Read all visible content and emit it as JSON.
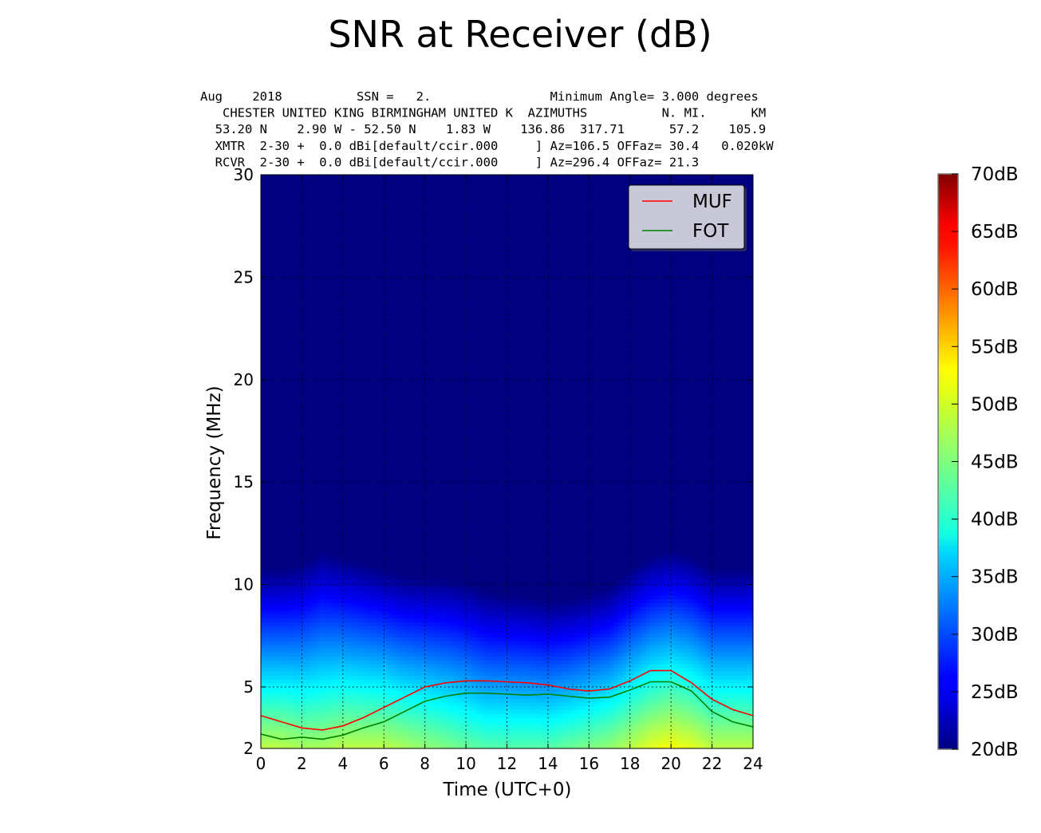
{
  "chart_data": {
    "type": "heatmap",
    "title": "SNR at Receiver (dB)",
    "header_lines": [
      "Aug    2018          SSN =   2.                Minimum Angle= 3.000 degrees",
      "   CHESTER UNITED KING BIRMINGHAM UNITED K  AZIMUTHS          N. MI.      KM",
      "  53.20 N    2.90 W - 52.50 N    1.83 W    136.86  317.71      57.2    105.9",
      "  XMTR  2-30 +  0.0 dBi[default/ccir.000     ] Az=106.5 OFFaz= 30.4   0.020kW",
      "  RCVR  2-30 +  0.0 dBi[default/ccir.000     ] Az=296.4 OFFaz= 21.3"
    ],
    "xlabel": "Time (UTC+0)",
    "ylabel": "Frequency (MHz)",
    "xlim": [
      0,
      24
    ],
    "ylim": [
      2,
      30
    ],
    "x_ticks": [
      "0",
      "2",
      "4",
      "6",
      "8",
      "10",
      "12",
      "14",
      "16",
      "18",
      "20",
      "22",
      "24"
    ],
    "y_ticks": [
      "2",
      "5",
      "10",
      "15",
      "20",
      "25",
      "30"
    ],
    "y_tick_values": [
      2,
      5,
      10,
      15,
      20,
      25,
      30
    ],
    "grid": true,
    "legend_position": "top-right",
    "colorbar": {
      "min": 20,
      "max": 70,
      "ticks": [
        "20dB",
        "25dB",
        "30dB",
        "35dB",
        "40dB",
        "45dB",
        "50dB",
        "55dB",
        "60dB",
        "65dB",
        "70dB"
      ],
      "colormap": "jet"
    },
    "hours": [
      0,
      1,
      2,
      3,
      4,
      5,
      6,
      7,
      8,
      9,
      10,
      11,
      12,
      13,
      14,
      15,
      16,
      17,
      18,
      19,
      20,
      21,
      22,
      23,
      24
    ],
    "snr_profile": {
      "surface_snr": [
        48,
        48,
        47,
        47,
        48,
        48,
        48,
        47,
        46,
        45,
        44,
        43,
        43,
        43,
        43,
        44,
        45,
        46,
        48,
        50,
        51,
        50,
        48,
        48,
        48
      ],
      "gradient_db_per_mhz": [
        3.2,
        3.2,
        3.0,
        2.8,
        3.0,
        3.1,
        3.2,
        3.2,
        3.1,
        3.0,
        2.95,
        3.0,
        3.05,
        3.1,
        3.2,
        3.3,
        3.3,
        3.3,
        3.2,
        3.2,
        3.2,
        3.2,
        3.2,
        3.2,
        3.2
      ],
      "background_snr": 20
    },
    "series": [
      {
        "name": "MUF",
        "color": "#ff0000",
        "x": [
          0,
          1,
          2,
          3,
          4,
          5,
          6,
          7,
          8,
          9,
          10,
          11,
          12,
          13,
          14,
          15,
          16,
          17,
          18,
          19,
          20,
          21,
          22,
          23,
          24
        ],
        "values": [
          3.6,
          3.3,
          3.0,
          2.9,
          3.1,
          3.5,
          4.0,
          4.5,
          5.0,
          5.2,
          5.3,
          5.3,
          5.25,
          5.2,
          5.1,
          4.9,
          4.8,
          4.9,
          5.3,
          5.8,
          5.8,
          5.2,
          4.4,
          3.9,
          3.6
        ]
      },
      {
        "name": "FOT",
        "color": "#008000",
        "x": [
          0,
          1,
          2,
          3,
          4,
          5,
          6,
          7,
          8,
          9,
          10,
          11,
          12,
          13,
          14,
          15,
          16,
          17,
          18,
          19,
          20,
          21,
          22,
          23,
          24
        ],
        "values": [
          2.7,
          2.45,
          2.55,
          2.45,
          2.65,
          3.0,
          3.3,
          3.8,
          4.3,
          4.55,
          4.7,
          4.7,
          4.65,
          4.6,
          4.65,
          4.55,
          4.45,
          4.5,
          4.85,
          5.25,
          5.25,
          4.8,
          3.8,
          3.3,
          3.05
        ]
      }
    ]
  }
}
